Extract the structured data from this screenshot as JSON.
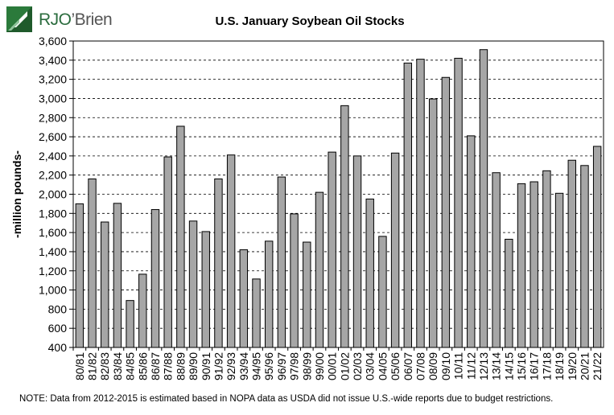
{
  "logo": {
    "brand_part1": "RJO",
    "brand_part2": "’Brien",
    "icon": "rjobrien-logo-icon",
    "colors": {
      "green": "#2b7a3b",
      "dark_green": "#1f5a2b",
      "gray": "#666666"
    }
  },
  "footnote": "NOTE: Data from 2012-2015 is estimated based in NOPA data as USDA did not issue U.S.-wide reports due to budget restrictions.",
  "chart_data": {
    "type": "bar",
    "title": "U.S. January Soybean Oil Stocks",
    "xlabel": "",
    "ylabel": "-million pounds-",
    "ylim": [
      400,
      3600
    ],
    "ytick_step": 200,
    "ytick_labels": [
      "400",
      "600",
      "800",
      "1,000",
      "1,200",
      "1,400",
      "1,600",
      "1,800",
      "2,000",
      "2,200",
      "2,400",
      "2,600",
      "2,800",
      "3,000",
      "3,200",
      "3,400",
      "3,600"
    ],
    "grid": "horizontal-dashed",
    "bar_color": "#a6a6a6",
    "categories": [
      "80/81",
      "81/82",
      "82/83",
      "83/84",
      "84/85",
      "85/86",
      "86/87",
      "87/88",
      "88/89",
      "89/90",
      "90/91",
      "91/92",
      "92/93",
      "93/94",
      "94/95",
      "95/96",
      "96/97",
      "97/98",
      "98/99",
      "99/00",
      "00/01",
      "01/02",
      "02/03",
      "03/04",
      "04/05",
      "05/06",
      "06/07",
      "07/08",
      "08/09",
      "09/10",
      "10/11",
      "11/12",
      "12/13",
      "13/14",
      "14/15",
      "15/16",
      "16/17",
      "17/18",
      "18/19",
      "19/20",
      "20/21",
      "21/22"
    ],
    "values": [
      1900,
      2160,
      1710,
      1905,
      890,
      1165,
      1840,
      2390,
      2710,
      1720,
      1610,
      2160,
      2410,
      1420,
      1115,
      1510,
      2180,
      1795,
      1500,
      2020,
      2440,
      2925,
      2400,
      1950,
      1560,
      2430,
      3370,
      3410,
      2995,
      3220,
      3420,
      2610,
      3510,
      2225,
      1530,
      2110,
      2130,
      2245,
      2010,
      2355,
      2300,
      2500
    ]
  }
}
